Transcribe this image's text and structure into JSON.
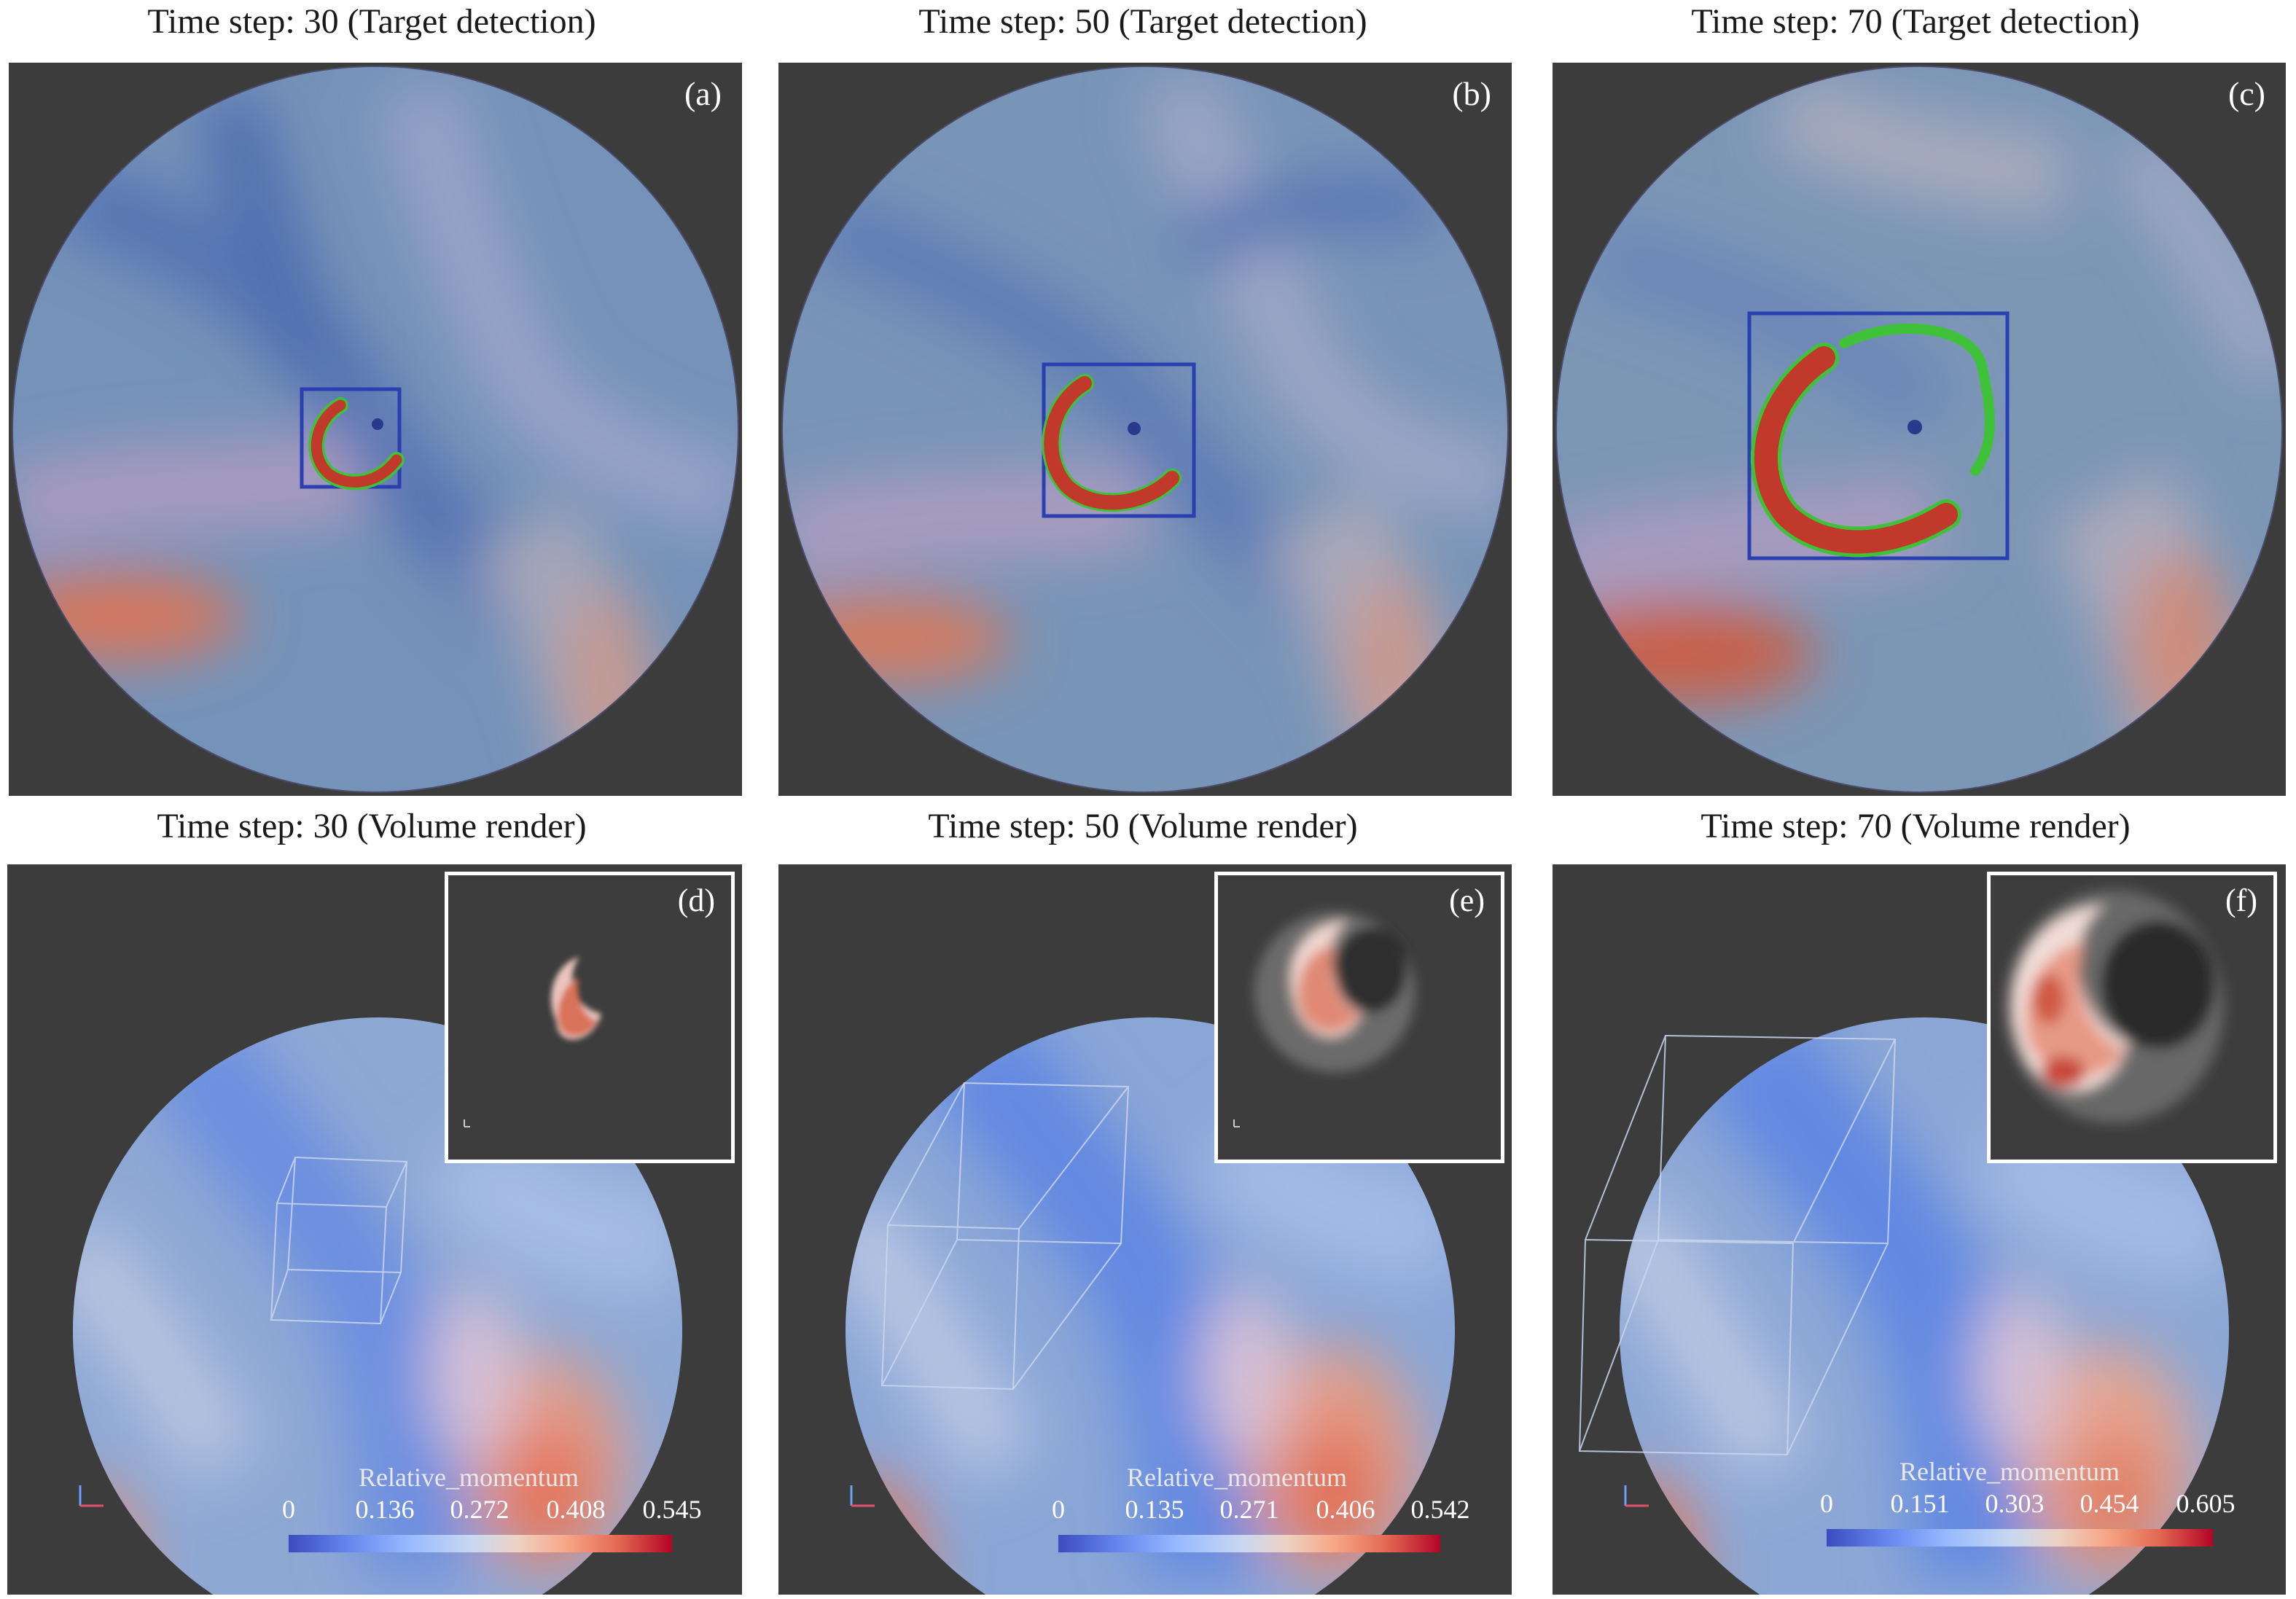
{
  "panels": [
    {
      "id": "a",
      "title": "Time step: 30 (Target detection)",
      "label": "(a)"
    },
    {
      "id": "b",
      "title": "Time step: 50 (Target detection)",
      "label": "(b)"
    },
    {
      "id": "c",
      "title": "Time step: 70 (Target detection)",
      "label": "(c)"
    },
    {
      "id": "d",
      "title": "Time step: 30 (Volume render)",
      "label": "(d)",
      "colorbar": {
        "title": "Relative_momentum",
        "ticks": [
          "0",
          "0.136",
          "0.272",
          "0.408",
          "0.545"
        ]
      }
    },
    {
      "id": "e",
      "title": "Time step: 50 (Volume render)",
      "label": "(e)",
      "colorbar": {
        "title": "Relative_momentum",
        "ticks": [
          "0",
          "0.135",
          "0.271",
          "0.406",
          "0.542"
        ]
      }
    },
    {
      "id": "f",
      "title": "Time step: 70 (Volume render)",
      "label": "(f)",
      "colorbar": {
        "title": "Relative_momentum",
        "ticks": [
          "0",
          "0.151",
          "0.303",
          "0.454",
          "0.605"
        ]
      }
    }
  ],
  "colors": {
    "panel_bg": "#3c3c3c",
    "field_base": "#6f8fb5",
    "detection_box": "#2a3fb0",
    "feature_red": "#c0392b",
    "feature_green": "#3fc23a"
  }
}
